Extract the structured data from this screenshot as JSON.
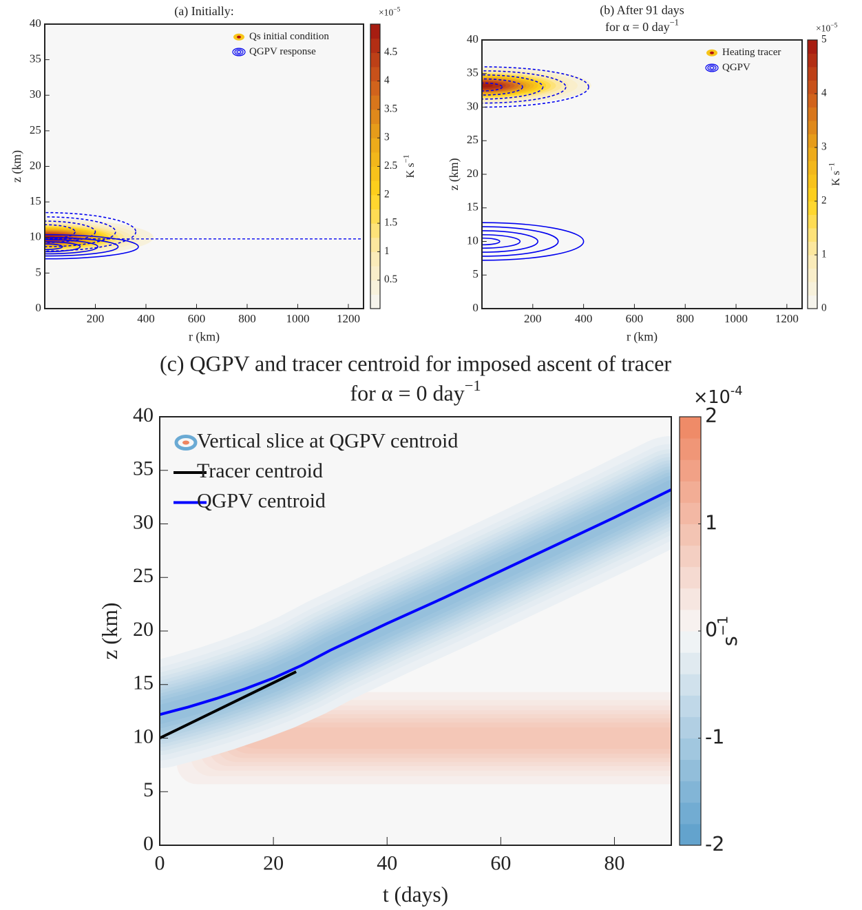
{
  "chart_data": [
    {
      "type": "contour",
      "title": [
        {
          "text": "(a) Initially:"
        }
      ],
      "xlabel": "r (km)",
      "ylabel": "z (km)",
      "xlim": [
        0,
        1260
      ],
      "xticks": [
        200,
        400,
        600,
        800,
        1000,
        1200
      ],
      "ylim": [
        0,
        40
      ],
      "yticks": [
        0,
        5,
        10,
        15,
        20,
        25,
        30,
        35,
        40
      ],
      "colorbar": {
        "lim": [
          0,
          5
        ],
        "ticks": [
          0.5,
          1,
          1.5,
          2,
          2.5,
          3,
          3.5,
          4,
          4.5
        ],
        "multiplier": "×10",
        "exponent": "−5",
        "units": "K s",
        "units_exponent": "−1",
        "colors": [
          "#f5f5f5",
          "#fbeab0",
          "#ffd41c",
          "#eaa51a",
          "#cd5a1c",
          "#a2140f"
        ]
      },
      "legend": [
        {
          "name": "Qs initial condition",
          "kind": "heating"
        },
        {
          "name": "QGPV response",
          "kind": "contour"
        }
      ],
      "heating": {
        "r": 0,
        "z": 10,
        "r_extent": 430,
        "z_extent": 2.6,
        "peak": 4.9
      },
      "contour_color": "#0000ee",
      "qgpv_contours": [
        {
          "z": 8.7,
          "r": 370,
          "dz": 1.7,
          "dashed": false
        },
        {
          "z": 8.7,
          "r": 290,
          "dz": 1.3,
          "dashed": false
        },
        {
          "z": 8.7,
          "r": 210,
          "dz": 1.0,
          "dashed": false
        },
        {
          "z": 8.7,
          "r": 140,
          "dz": 0.7,
          "dashed": false
        },
        {
          "z": 8.7,
          "r": 70,
          "dz": 0.4,
          "dashed": false
        },
        {
          "z": 10.8,
          "r": 360,
          "dz": 2.7,
          "dashed": true
        },
        {
          "z": 10.8,
          "r": 280,
          "dz": 2.1,
          "dashed": true
        },
        {
          "z": 10.8,
          "r": 200,
          "dz": 1.5,
          "dashed": true
        },
        {
          "z": 10.8,
          "r": 120,
          "dz": 1.0,
          "dashed": true
        }
      ],
      "dashed_line_z": 9.8
    },
    {
      "type": "contour",
      "title": [
        {
          "text": "(b) After 91 days"
        },
        {
          "text": "for α = 0 day",
          "sup": "−1"
        }
      ],
      "xlabel": "r (km)",
      "ylabel": "z (km)",
      "xlim": [
        0,
        1260
      ],
      "xticks": [
        200,
        400,
        600,
        800,
        1000,
        1200
      ],
      "ylim": [
        0,
        40
      ],
      "yticks": [
        0,
        5,
        10,
        15,
        20,
        25,
        30,
        35,
        40
      ],
      "colorbar": {
        "lim": [
          0,
          5
        ],
        "ticks": [
          0,
          1,
          2,
          3,
          4,
          5
        ],
        "multiplier": "×10",
        "exponent": "−5",
        "units": "K s",
        "units_exponent": "−1",
        "colors": [
          "#f5f5f5",
          "#fbeab0",
          "#ffd41c",
          "#eaa51a",
          "#cd5a1c",
          "#a2140f"
        ]
      },
      "legend": [
        {
          "name": "Heating tracer",
          "kind": "heating"
        },
        {
          "name": "QGPV",
          "kind": "contour"
        }
      ],
      "heating": {
        "r": 0,
        "z": 33.2,
        "r_extent": 430,
        "z_extent": 2.8,
        "peak": 4.9
      },
      "contour_color": "#0000ee",
      "qgpv_contours": [
        {
          "z": 33,
          "r": 420,
          "dz": 3.0,
          "dashed": true
        },
        {
          "z": 33,
          "r": 330,
          "dz": 2.4,
          "dashed": true
        },
        {
          "z": 33,
          "r": 240,
          "dz": 1.8,
          "dashed": true
        },
        {
          "z": 33,
          "r": 160,
          "dz": 1.2,
          "dashed": true
        },
        {
          "z": 33,
          "r": 80,
          "dz": 0.6,
          "dashed": true
        },
        {
          "z": 10,
          "r": 400,
          "dz": 2.8,
          "dashed": false
        },
        {
          "z": 10,
          "r": 300,
          "dz": 2.2,
          "dashed": false
        },
        {
          "z": 10,
          "r": 220,
          "dz": 1.6,
          "dashed": false
        },
        {
          "z": 10,
          "r": 150,
          "dz": 1.0,
          "dashed": false
        },
        {
          "z": 10,
          "r": 70,
          "dz": 0.5,
          "dashed": false
        }
      ]
    },
    {
      "type": "timeseries",
      "title": [
        {
          "text": "(c) QGPV and tracer centroid for imposed ascent of tracer"
        },
        {
          "text": "for α = 0 day",
          "sup": "−1"
        }
      ],
      "xlabel": "t (days)",
      "ylabel": "z (km)",
      "xlim": [
        0,
        90
      ],
      "xticks": [
        0,
        20,
        40,
        60,
        80
      ],
      "ylim": [
        0,
        40
      ],
      "yticks": [
        0,
        5,
        10,
        15,
        20,
        25,
        30,
        35,
        40
      ],
      "colorbar": {
        "lim": [
          -2,
          2
        ],
        "ticks": [
          -2,
          -1,
          0,
          1,
          2
        ],
        "multiplier": "×10",
        "exponent": "-4",
        "units": "s",
        "units_exponent": "−1",
        "colors": [
          "#5b9fcb",
          "#f7f7f7",
          "#ef8560"
        ]
      },
      "band_name": "Vertical slice at QGPV centroid",
      "negative_band": {
        "peak": -1.3,
        "dz": 5
      },
      "positive_band": {
        "z": 10,
        "dz": 4.3,
        "t_start": 3,
        "peak": 0.9
      },
      "series": [
        {
          "name": "Tracer centroid",
          "color": "#000000",
          "x": [
            0,
            24
          ],
          "values": [
            10,
            16.2
          ]
        },
        {
          "name": "QGPV centroid",
          "color": "#0000ff",
          "x": [
            0,
            5,
            10,
            15,
            20,
            25,
            30,
            40,
            50,
            60,
            70,
            80,
            90
          ],
          "values": [
            12.2,
            12.9,
            13.7,
            14.6,
            15.6,
            16.8,
            18.2,
            20.7,
            23.1,
            25.6,
            28.1,
            30.6,
            33.2
          ]
        }
      ]
    }
  ]
}
